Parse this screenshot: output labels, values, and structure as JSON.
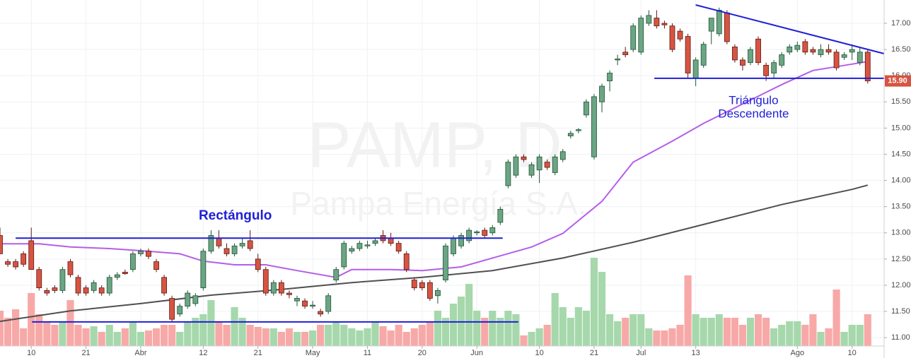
{
  "chart_data": {
    "type": "candlestick",
    "watermark": "PAMP, D",
    "watermark_subtitle": "Pampa Energía S.A.",
    "xlim": [
      0,
      113.1
    ],
    "ylim": [
      10.84,
      17.445
    ],
    "xticks": [
      {
        "value": 4,
        "label": "10"
      },
      {
        "value": 11,
        "label": "21"
      },
      {
        "value": 18,
        "label": "Abr"
      },
      {
        "value": 26,
        "label": "12"
      },
      {
        "value": 33,
        "label": "21"
      },
      {
        "value": 40,
        "label": "May"
      },
      {
        "value": 47,
        "label": "11"
      },
      {
        "value": 54,
        "label": "20"
      },
      {
        "value": 61,
        "label": "Jun"
      },
      {
        "value": 69,
        "label": "10"
      },
      {
        "value": 76,
        "label": "21"
      },
      {
        "value": 82,
        "label": "Jul"
      },
      {
        "value": 89,
        "label": "13"
      },
      {
        "value": 102,
        "label": "Ago"
      },
      {
        "value": 109,
        "label": "10"
      }
    ],
    "yticks": [
      {
        "value": 11,
        "label": "11.00"
      },
      {
        "value": 11.5,
        "label": "11.50"
      },
      {
        "value": 12,
        "label": "12.00"
      },
      {
        "value": 12.5,
        "label": "12.50"
      },
      {
        "value": 13,
        "label": "13.00"
      },
      {
        "value": 13.5,
        "label": "13.50"
      },
      {
        "value": 14,
        "label": "14.00"
      },
      {
        "value": 14.5,
        "label": "14.50"
      },
      {
        "value": 15,
        "label": "15.00"
      },
      {
        "value": 15.5,
        "label": "15.50"
      },
      {
        "value": 16,
        "label": "16.00"
      },
      {
        "value": 16.5,
        "label": "16.50"
      },
      {
        "value": 17,
        "label": "17.00"
      }
    ],
    "grid": true,
    "up_color": "#6ba583",
    "up_border": "#225437",
    "down_color": "#d75442",
    "down_border": "#5b1a13",
    "volume_up_color": "#a6d8ac",
    "volume_down_color": "#f7a9a7",
    "ohlc": [
      [
        12.95,
        13.1,
        12.6,
        12.6
      ],
      [
        12.45,
        12.5,
        12.35,
        12.4
      ],
      [
        12.45,
        12.5,
        12.3,
        12.35
      ],
      [
        12.6,
        12.65,
        12.35,
        12.4
      ],
      [
        12.85,
        13.1,
        12.3,
        12.3
      ],
      [
        12.3,
        12.35,
        11.9,
        11.95
      ],
      [
        11.9,
        11.95,
        11.8,
        11.85
      ],
      [
        11.95,
        12.0,
        11.85,
        11.9
      ],
      [
        11.9,
        12.35,
        11.85,
        12.3
      ],
      [
        12.45,
        12.5,
        12.15,
        12.2
      ],
      [
        12.15,
        12.2,
        11.8,
        11.85
      ],
      [
        11.95,
        12.0,
        11.8,
        11.85
      ],
      [
        11.9,
        12.1,
        11.85,
        12.05
      ],
      [
        11.95,
        12.0,
        11.8,
        11.85
      ],
      [
        11.85,
        12.2,
        11.8,
        12.15
      ],
      [
        12.15,
        12.25,
        12.1,
        12.2
      ],
      [
        12.25,
        12.3,
        12.2,
        12.22
      ],
      [
        12.3,
        12.65,
        12.25,
        12.6
      ],
      [
        12.6,
        12.7,
        12.55,
        12.65
      ],
      [
        12.65,
        12.7,
        12.5,
        12.55
      ],
      [
        12.45,
        12.5,
        12.25,
        12.3
      ],
      [
        12.15,
        12.2,
        11.8,
        11.85
      ],
      [
        11.75,
        11.8,
        11.3,
        11.35
      ],
      [
        11.45,
        11.65,
        11.4,
        11.6
      ],
      [
        11.6,
        11.9,
        11.55,
        11.85
      ],
      [
        11.65,
        11.85,
        11.6,
        11.8
      ],
      [
        11.95,
        12.7,
        11.9,
        12.65
      ],
      [
        12.65,
        13.05,
        12.6,
        12.95
      ],
      [
        12.9,
        13.05,
        12.7,
        12.75
      ],
      [
        12.7,
        12.8,
        12.55,
        12.6
      ],
      [
        12.6,
        12.8,
        12.55,
        12.75
      ],
      [
        12.75,
        12.9,
        12.7,
        12.8
      ],
      [
        12.85,
        13.05,
        12.65,
        12.7
      ],
      [
        12.5,
        12.6,
        12.25,
        12.3
      ],
      [
        12.3,
        12.35,
        11.8,
        11.85
      ],
      [
        11.85,
        12.1,
        11.8,
        12.05
      ],
      [
        12.05,
        12.1,
        11.8,
        11.85
      ],
      [
        11.85,
        11.9,
        11.75,
        11.82
      ],
      [
        11.7,
        11.8,
        11.6,
        11.75
      ],
      [
        11.7,
        11.75,
        11.55,
        11.6
      ],
      [
        11.6,
        11.7,
        11.55,
        11.62
      ],
      [
        11.5,
        11.55,
        11.4,
        11.45
      ],
      [
        11.5,
        11.85,
        11.45,
        11.8
      ],
      [
        12.1,
        12.35,
        12.05,
        12.3
      ],
      [
        12.35,
        12.85,
        12.3,
        12.8
      ],
      [
        12.65,
        12.75,
        12.6,
        12.7
      ],
      [
        12.7,
        12.85,
        12.65,
        12.8
      ],
      [
        12.75,
        12.85,
        12.7,
        12.77
      ],
      [
        12.8,
        12.9,
        12.75,
        12.85
      ],
      [
        12.95,
        13.05,
        12.8,
        12.85
      ],
      [
        12.9,
        13.0,
        12.75,
        12.8
      ],
      [
        12.8,
        12.85,
        12.6,
        12.65
      ],
      [
        12.6,
        12.65,
        12.25,
        12.3
      ],
      [
        12.1,
        12.15,
        11.9,
        11.95
      ],
      [
        12.05,
        12.1,
        11.9,
        11.95
      ],
      [
        12.05,
        12.1,
        11.7,
        11.75
      ],
      [
        11.8,
        11.95,
        11.65,
        11.9
      ],
      [
        12.1,
        12.8,
        12.05,
        12.75
      ],
      [
        12.6,
        12.95,
        12.55,
        12.9
      ],
      [
        12.75,
        13.0,
        12.7,
        12.95
      ],
      [
        12.85,
        13.1,
        12.8,
        13.05
      ],
      [
        13.0,
        13.05,
        12.95,
        13.02
      ],
      [
        13.05,
        13.1,
        12.9,
        12.95
      ],
      [
        13.0,
        13.15,
        12.95,
        13.1
      ],
      [
        13.2,
        13.5,
        13.15,
        13.45
      ],
      [
        13.9,
        14.4,
        13.85,
        14.35
      ],
      [
        14.1,
        14.5,
        14.05,
        14.45
      ],
      [
        14.45,
        14.5,
        14.35,
        14.4
      ],
      [
        14.1,
        14.35,
        14.05,
        14.3
      ],
      [
        14.2,
        14.5,
        13.95,
        14.45
      ],
      [
        14.35,
        14.4,
        14.2,
        14.25
      ],
      [
        14.15,
        14.5,
        14.1,
        14.45
      ],
      [
        14.4,
        14.6,
        14.35,
        14.55
      ],
      [
        14.85,
        14.95,
        14.8,
        14.9
      ],
      [
        14.95,
        15.0,
        14.9,
        14.97
      ],
      [
        15.25,
        15.55,
        15.2,
        15.5
      ],
      [
        14.45,
        15.65,
        14.4,
        15.6
      ],
      [
        15.5,
        15.85,
        15.3,
        15.8
      ],
      [
        15.9,
        16.1,
        15.7,
        16.05
      ],
      [
        16.3,
        16.4,
        16.2,
        16.32
      ],
      [
        16.45,
        16.55,
        16.35,
        16.4
      ],
      [
        16.5,
        17.0,
        16.45,
        16.95
      ],
      [
        16.45,
        17.15,
        16.4,
        17.1
      ],
      [
        17.0,
        17.25,
        16.95,
        17.15
      ],
      [
        17.1,
        17.25,
        16.9,
        16.95
      ],
      [
        17.0,
        17.05,
        16.9,
        16.97
      ],
      [
        16.95,
        17.0,
        16.45,
        16.5
      ],
      [
        16.85,
        16.9,
        16.65,
        16.7
      ],
      [
        16.75,
        16.8,
        15.95,
        16.05
      ],
      [
        15.95,
        16.35,
        15.8,
        16.3
      ],
      [
        16.2,
        16.65,
        16.15,
        16.6
      ],
      [
        16.85,
        17.1,
        16.6,
        17.1
      ],
      [
        16.8,
        17.3,
        16.75,
        17.25
      ],
      [
        17.2,
        17.25,
        16.6,
        16.65
      ],
      [
        16.55,
        16.6,
        16.25,
        16.3
      ],
      [
        16.3,
        16.35,
        16.1,
        16.2
      ],
      [
        16.25,
        16.55,
        16.2,
        16.5
      ],
      [
        16.7,
        16.75,
        16.2,
        16.25
      ],
      [
        16.2,
        16.25,
        15.9,
        16.0
      ],
      [
        16.05,
        16.3,
        15.95,
        16.25
      ],
      [
        16.2,
        16.45,
        16.15,
        16.4
      ],
      [
        16.45,
        16.6,
        16.4,
        16.55
      ],
      [
        16.5,
        16.65,
        16.45,
        16.58
      ],
      [
        16.65,
        16.7,
        16.4,
        16.45
      ],
      [
        16.5,
        16.55,
        16.4,
        16.45
      ],
      [
        16.4,
        16.6,
        16.35,
        16.5
      ],
      [
        16.5,
        16.6,
        16.4,
        16.45
      ],
      [
        16.45,
        16.5,
        16.1,
        16.15
      ],
      [
        16.35,
        16.45,
        16.3,
        16.4
      ],
      [
        16.45,
        16.6,
        16.3,
        16.5
      ],
      [
        16.25,
        16.55,
        16.2,
        16.45
      ],
      [
        16.45,
        16.5,
        15.85,
        15.9
      ]
    ],
    "volume_lim": [
      0,
      490
    ],
    "volume": [
      50,
      40,
      52,
      25,
      75,
      45,
      35,
      30,
      35,
      65,
      30,
      25,
      28,
      20,
      30,
      20,
      25,
      35,
      20,
      22,
      25,
      30,
      30,
      20,
      35,
      40,
      45,
      65,
      35,
      30,
      55,
      40,
      30,
      27,
      25,
      25,
      20,
      25,
      20,
      20,
      22,
      30,
      30,
      35,
      30,
      25,
      22,
      25,
      35,
      28,
      22,
      30,
      20,
      25,
      30,
      35,
      50,
      40,
      60,
      70,
      88,
      50,
      40,
      50,
      40,
      50,
      45,
      15,
      20,
      25,
      30,
      75,
      55,
      40,
      55,
      50,
      125,
      105,
      45,
      35,
      40,
      45,
      45,
      25,
      22,
      22,
      25,
      30,
      100,
      45,
      40,
      40,
      45,
      40,
      40,
      30,
      40,
      45,
      40,
      25,
      30,
      35,
      35,
      30,
      45,
      20,
      25,
      80,
      20,
      30,
      30,
      45
    ],
    "series": [
      {
        "color": "#b45ee8",
        "x": [
          0,
          5,
          9,
          14,
          18,
          23,
          26,
          30,
          34,
          38,
          43,
          45,
          50,
          54,
          59,
          63,
          68,
          72,
          77,
          81,
          86,
          90,
          100,
          104,
          111
        ],
        "values": [
          12.79,
          12.79,
          12.73,
          12.7,
          12.66,
          12.6,
          12.46,
          12.39,
          12.39,
          12.28,
          12.15,
          12.3,
          12.3,
          12.28,
          12.35,
          12.52,
          12.73,
          12.99,
          13.6,
          14.35,
          14.75,
          15.09,
          15.83,
          16.1,
          16.27
        ]
      },
      {
        "color": "#505050",
        "x": [
          0,
          9,
          18,
          27,
          36,
          45,
          54,
          63,
          72,
          81,
          90,
          100,
          109,
          111
        ],
        "values": [
          11.31,
          11.51,
          11.65,
          11.81,
          11.92,
          12.05,
          12.15,
          12.28,
          12.52,
          12.82,
          13.16,
          13.54,
          13.83,
          13.91
        ]
      }
    ],
    "drawings": [
      {
        "color": "#1f1fd6",
        "x": [
          2,
          64.3
        ],
        "values": [
          12.9,
          12.9
        ]
      },
      {
        "color": "#1f1fd6",
        "x": [
          4.1,
          66.3
        ],
        "values": [
          11.3,
          11.3
        ]
      },
      {
        "color": "#1f1fd6",
        "x": [
          89,
          113.1
        ],
        "values": [
          17.35,
          16.42
        ]
      },
      {
        "color": "#1f1fd6",
        "x": [
          83.7,
          113.1
        ],
        "values": [
          15.95,
          15.95
        ]
      }
    ],
    "annotations": [
      {
        "text": "Rectángulo",
        "x": 30.1,
        "y": 13.32,
        "bold": true
      },
      {
        "text": "Triángulo",
        "x": 96.4,
        "y": 15.52,
        "bold": false
      },
      {
        "text": "Descendente",
        "x": 96.4,
        "y": 15.26,
        "bold": false
      }
    ],
    "last_price": {
      "value": 15.9,
      "label": "15.90"
    }
  }
}
